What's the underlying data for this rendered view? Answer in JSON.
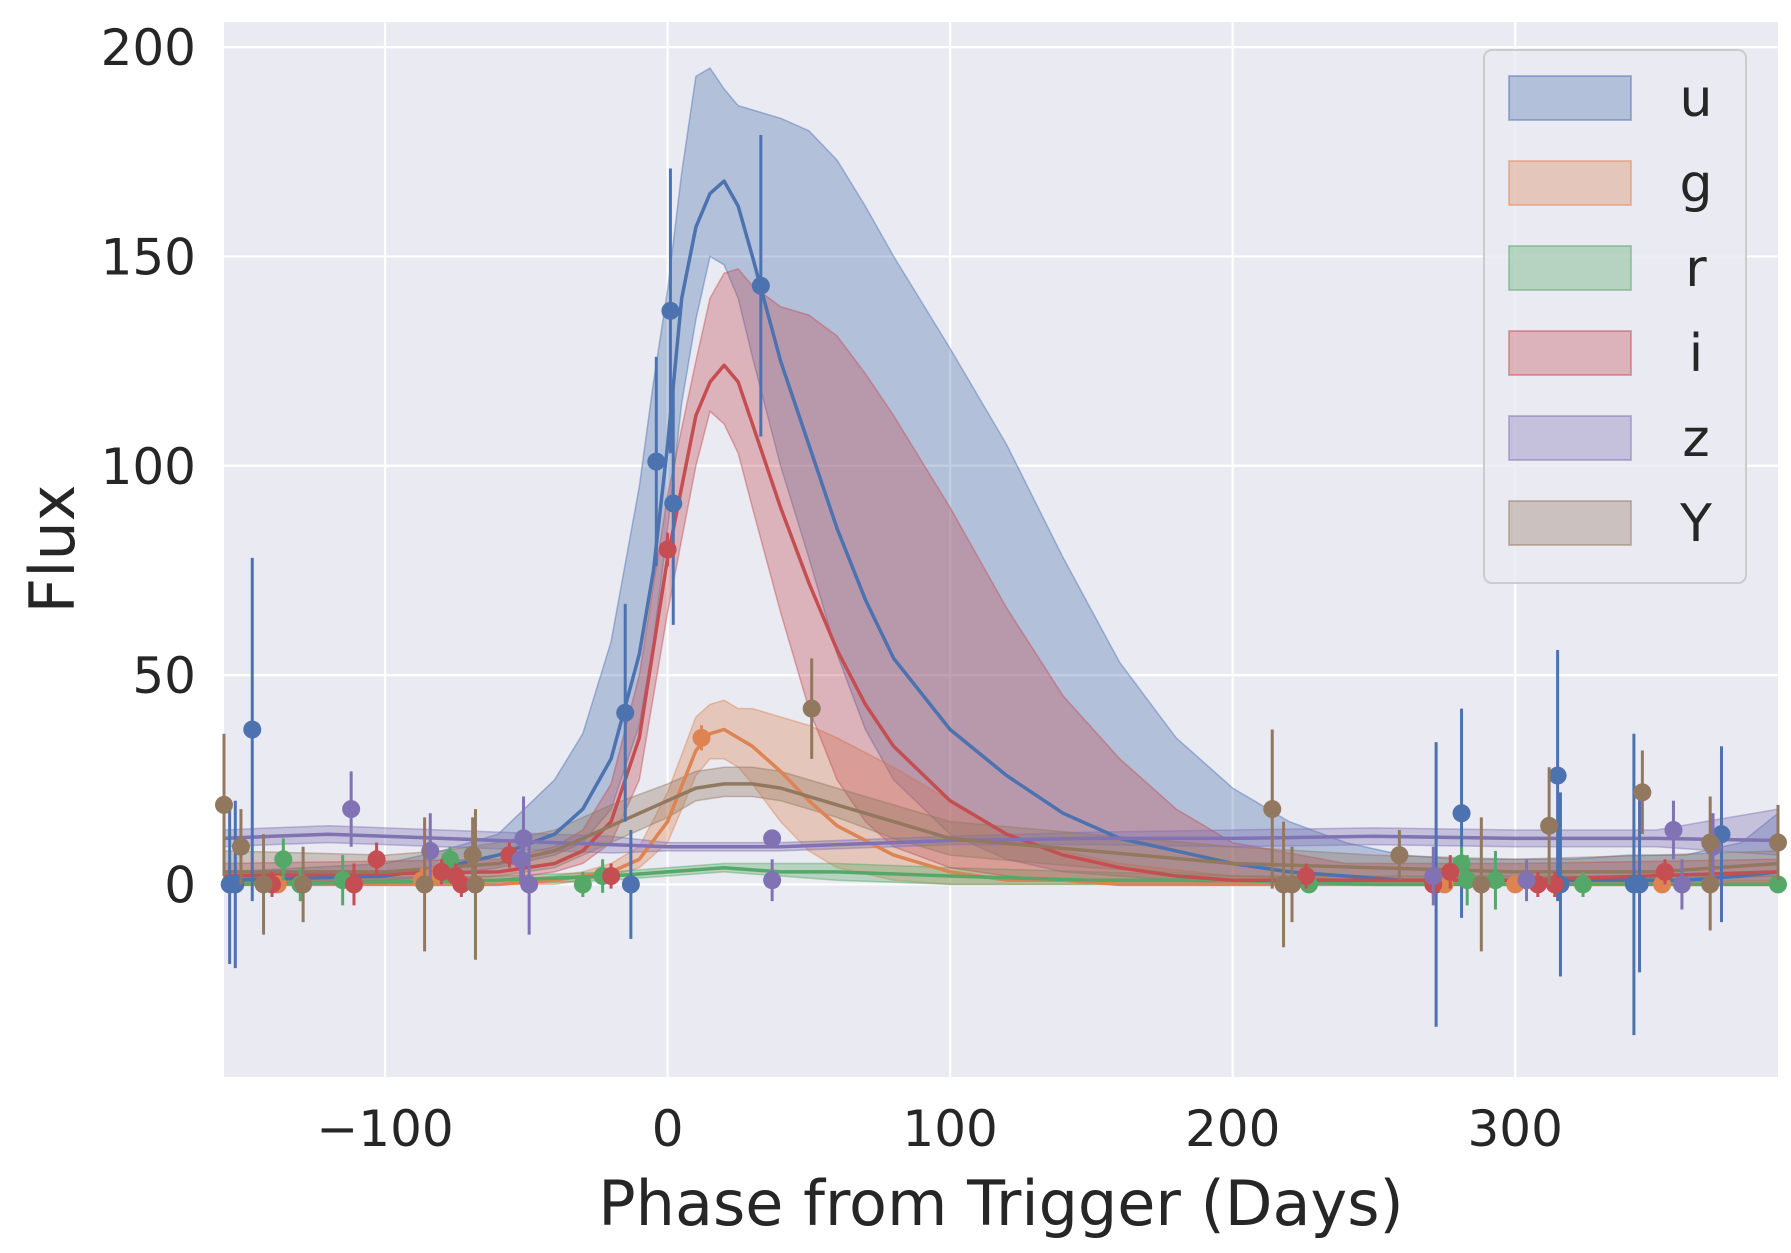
{
  "chart_data": {
    "type": "line",
    "xlabel": "Phase from Trigger (Days)",
    "ylabel": "Flux",
    "xlim": [
      -157,
      393
    ],
    "ylim": [
      -46,
      206
    ],
    "xticks": [
      -100,
      0,
      100,
      200,
      300
    ],
    "xtick_labels": [
      "−100",
      "0",
      "100",
      "200",
      "300"
    ],
    "yticks": [
      0,
      50,
      100,
      150,
      200
    ],
    "ytick_labels": [
      "0",
      "50",
      "100",
      "150",
      "200"
    ],
    "grid": true,
    "legend_position": "top-right",
    "series": [
      {
        "name": "u",
        "color": "#4c72b0",
        "model": {
          "x": [
            -157,
            -100,
            -80,
            -60,
            -40,
            -30,
            -20,
            -10,
            -5,
            0,
            5,
            10,
            15,
            20,
            25,
            30,
            40,
            50,
            60,
            70,
            80,
            100,
            120,
            140,
            160,
            180,
            200,
            220,
            240,
            260,
            280,
            300,
            320,
            340,
            360,
            380,
            393
          ],
          "y": [
            1,
            2,
            4,
            7,
            12,
            18,
            30,
            55,
            75,
            105,
            140,
            157,
            165,
            168,
            162,
            150,
            125,
            105,
            85,
            68,
            54,
            37,
            26,
            17,
            11,
            8,
            5,
            3,
            2,
            1,
            1,
            1,
            1,
            1,
            1,
            2,
            3
          ],
          "upper": [
            3,
            5,
            8,
            12,
            25,
            36,
            58,
            95,
            120,
            142,
            170,
            193,
            195,
            190,
            186,
            185,
            183,
            180,
            173,
            162,
            150,
            128,
            105,
            78,
            53,
            35,
            23,
            15,
            10,
            7,
            6,
            6,
            6,
            7,
            7,
            10,
            17
          ],
          "lower": [
            0,
            1,
            2,
            4,
            7,
            10,
            18,
            38,
            58,
            85,
            115,
            135,
            150,
            148,
            140,
            126,
            100,
            78,
            55,
            37,
            25,
            12,
            6,
            3,
            2,
            1,
            0,
            0,
            0,
            0,
            0,
            0,
            0,
            0,
            0,
            0,
            0
          ]
        },
        "points": [
          {
            "x": -155,
            "y": 0,
            "err": 19
          },
          {
            "x": -153,
            "y": 0,
            "err": 20
          },
          {
            "x": -147,
            "y": 37,
            "err": 41
          },
          {
            "x": -15,
            "y": 41,
            "err": 26
          },
          {
            "x": -13,
            "y": 0,
            "err": 13
          },
          {
            "x": -4,
            "y": 101,
            "err": 25
          },
          {
            "x": 1,
            "y": 137,
            "err": 34
          },
          {
            "x": 2,
            "y": 91,
            "err": 29
          },
          {
            "x": 33,
            "y": 143,
            "err": 36
          },
          {
            "x": 272,
            "y": 0,
            "err": 34
          },
          {
            "x": 281,
            "y": 17,
            "err": 25
          },
          {
            "x": 315,
            "y": 26,
            "err": 30
          },
          {
            "x": 316,
            "y": 0,
            "err": 22
          },
          {
            "x": 342,
            "y": 0,
            "err": 36
          },
          {
            "x": 344,
            "y": 0,
            "err": 21
          },
          {
            "x": 373,
            "y": 12,
            "err": 21
          }
        ]
      },
      {
        "name": "g",
        "color": "#dd8452",
        "model": {
          "x": [
            -157,
            -60,
            -40,
            -30,
            -20,
            -10,
            0,
            10,
            15,
            20,
            25,
            30,
            40,
            50,
            60,
            80,
            100,
            120,
            140,
            160,
            200,
            240,
            300,
            393
          ],
          "y": [
            0,
            0,
            1,
            2,
            3,
            6,
            15,
            32,
            36,
            37,
            35,
            33,
            27,
            20,
            14,
            7,
            3,
            1,
            1,
            0,
            0,
            0,
            0,
            0
          ],
          "upper": [
            1,
            1,
            2,
            3,
            5,
            9,
            22,
            40,
            43,
            44,
            42,
            42,
            40,
            38,
            35,
            28,
            20,
            12,
            8,
            5,
            2,
            1,
            1,
            1
          ],
          "lower": [
            0,
            0,
            0,
            1,
            2,
            4,
            10,
            26,
            30,
            30,
            28,
            24,
            15,
            8,
            4,
            1,
            0,
            0,
            0,
            0,
            0,
            0,
            0,
            0
          ]
        },
        "points": [
          {
            "x": -138,
            "y": 0,
            "err": 0
          },
          {
            "x": -87,
            "y": 1,
            "err": 3
          },
          {
            "x": -83,
            "y": 2,
            "err": 2
          },
          {
            "x": 12,
            "y": 35,
            "err": 3
          },
          {
            "x": 275,
            "y": 0,
            "err": 0
          },
          {
            "x": 300,
            "y": 0,
            "err": 0
          },
          {
            "x": 352,
            "y": 0,
            "err": 0
          }
        ]
      },
      {
        "name": "r",
        "color": "#55a868",
        "model": {
          "x": [
            -157,
            -60,
            -20,
            0,
            20,
            40,
            60,
            100,
            150,
            200,
            250,
            300,
            393
          ],
          "y": [
            0,
            1,
            2,
            3,
            4,
            3,
            3,
            2,
            1,
            1,
            0,
            0,
            0
          ],
          "upper": [
            1,
            2,
            3,
            4,
            5,
            5,
            5,
            4,
            3,
            2,
            2,
            2,
            2
          ],
          "lower": [
            0,
            0,
            1,
            2,
            3,
            2,
            1,
            0,
            0,
            0,
            0,
            0,
            0
          ]
        },
        "points": [
          {
            "x": -136,
            "y": 6,
            "err": 5
          },
          {
            "x": -130,
            "y": 0,
            "err": 4
          },
          {
            "x": -115,
            "y": 1,
            "err": 6
          },
          {
            "x": -77,
            "y": 6,
            "err": 3
          },
          {
            "x": -30,
            "y": 0,
            "err": 3
          },
          {
            "x": -23,
            "y": 2,
            "err": 4
          },
          {
            "x": 227,
            "y": 0,
            "err": 1
          },
          {
            "x": 281,
            "y": 5,
            "err": 4
          },
          {
            "x": 283,
            "y": 1,
            "err": 6
          },
          {
            "x": 293,
            "y": 1,
            "err": 7
          },
          {
            "x": 324,
            "y": 0,
            "err": 3
          },
          {
            "x": 393,
            "y": 0,
            "err": 2
          }
        ]
      },
      {
        "name": "i",
        "color": "#c44e52",
        "model": {
          "x": [
            -157,
            -60,
            -40,
            -30,
            -20,
            -10,
            0,
            10,
            15,
            20,
            25,
            30,
            40,
            50,
            60,
            70,
            80,
            100,
            120,
            140,
            160,
            180,
            200,
            240,
            300,
            393
          ],
          "y": [
            2,
            3,
            5,
            8,
            15,
            35,
            78,
            112,
            120,
            124,
            120,
            110,
            90,
            72,
            56,
            43,
            33,
            20,
            12,
            7,
            4,
            2,
            1,
            1,
            1,
            3
          ],
          "upper": [
            5,
            6,
            9,
            13,
            24,
            50,
            93,
            125,
            140,
            146,
            147,
            143,
            138,
            136,
            131,
            122,
            112,
            90,
            66,
            45,
            30,
            18,
            10,
            5,
            5,
            6
          ],
          "lower": [
            0,
            1,
            3,
            5,
            10,
            25,
            65,
            100,
            113,
            110,
            103,
            90,
            65,
            42,
            25,
            15,
            9,
            4,
            2,
            1,
            0,
            0,
            0,
            0,
            0,
            0
          ]
        },
        "points": [
          {
            "x": -140,
            "y": 0,
            "err": 3
          },
          {
            "x": -111,
            "y": 0,
            "err": 5
          },
          {
            "x": -103,
            "y": 6,
            "err": 4
          },
          {
            "x": -80,
            "y": 3,
            "err": 3
          },
          {
            "x": -75,
            "y": 2,
            "err": 3
          },
          {
            "x": -73,
            "y": 0,
            "err": 3
          },
          {
            "x": -56,
            "y": 7,
            "err": 3
          },
          {
            "x": -20,
            "y": 2,
            "err": 3
          },
          {
            "x": 0,
            "y": 80,
            "err": 4
          },
          {
            "x": 226,
            "y": 2,
            "err": 3
          },
          {
            "x": 271,
            "y": 0,
            "err": 3
          },
          {
            "x": 277,
            "y": 3,
            "err": 4
          },
          {
            "x": 308,
            "y": 0,
            "err": 3
          },
          {
            "x": 314,
            "y": 0,
            "err": 3
          },
          {
            "x": 353,
            "y": 3,
            "err": 3
          }
        ]
      },
      {
        "name": "z",
        "color": "#8172b3",
        "model": {
          "x": [
            -157,
            -140,
            -120,
            -100,
            -80,
            -60,
            -40,
            -20,
            0,
            20,
            40,
            60,
            80,
            100,
            150,
            200,
            250,
            300,
            350,
            393
          ],
          "y": [
            11,
            11.5,
            12,
            11.5,
            11,
            10.5,
            10,
            9.5,
            9,
            9,
            9,
            9.5,
            10,
            10.5,
            11,
            11,
            11.5,
            11,
            11,
            10.5
          ],
          "upper": [
            13,
            13.5,
            14,
            13.5,
            13,
            12.5,
            12,
            11.5,
            10,
            10,
            10,
            10.5,
            11,
            11.5,
            12.5,
            13,
            13.5,
            13,
            13,
            18
          ],
          "lower": [
            9,
            9.5,
            10,
            9.5,
            9,
            8.5,
            8,
            7.5,
            8,
            8,
            8,
            8.5,
            9,
            9.5,
            9.5,
            9,
            9.5,
            9,
            9,
            7
          ]
        },
        "points": [
          {
            "x": -112,
            "y": 18,
            "err": 9
          },
          {
            "x": -84,
            "y": 8,
            "err": 9
          },
          {
            "x": -52,
            "y": 6,
            "err": 6
          },
          {
            "x": -51,
            "y": 11,
            "err": 10
          },
          {
            "x": -49,
            "y": 0,
            "err": 12
          },
          {
            "x": 37,
            "y": 1,
            "err": 5
          },
          {
            "x": 37,
            "y": 11,
            "err": 2
          },
          {
            "x": 271,
            "y": 2,
            "err": 7
          },
          {
            "x": 304,
            "y": 1,
            "err": 5
          },
          {
            "x": 356,
            "y": 13,
            "err": 7
          },
          {
            "x": 359,
            "y": 0,
            "err": 6
          },
          {
            "x": 370,
            "y": 9,
            "err": 8
          }
        ]
      },
      {
        "name": "Y",
        "color": "#937860",
        "model": {
          "x": [
            -157,
            -100,
            -80,
            -60,
            -40,
            -20,
            0,
            10,
            20,
            30,
            40,
            60,
            80,
            100,
            150,
            200,
            250,
            300,
            350,
            393
          ],
          "y": [
            3,
            3,
            4,
            5,
            8,
            14,
            20,
            23,
            24,
            24,
            23,
            19,
            15,
            11,
            8,
            5,
            4,
            3,
            3,
            5
          ],
          "upper": [
            8,
            7,
            8,
            10,
            13,
            19,
            24,
            27,
            28,
            28,
            27,
            23,
            19,
            15,
            12,
            9,
            7,
            6,
            7,
            8
          ],
          "lower": [
            0,
            0,
            1,
            2,
            4,
            10,
            16,
            20,
            21,
            21,
            20,
            16,
            11,
            7,
            4,
            2,
            1,
            1,
            1,
            2
          ]
        },
        "points": [
          {
            "x": -157,
            "y": 19,
            "err": 17
          },
          {
            "x": -151,
            "y": 9,
            "err": 9
          },
          {
            "x": -143,
            "y": 0,
            "err": 12
          },
          {
            "x": -129,
            "y": 0,
            "err": 9
          },
          {
            "x": -86,
            "y": 0,
            "err": 16
          },
          {
            "x": -69,
            "y": 7,
            "err": 9
          },
          {
            "x": -68,
            "y": 0,
            "err": 18
          },
          {
            "x": 51,
            "y": 42,
            "err": 12
          },
          {
            "x": 214,
            "y": 18,
            "err": 19
          },
          {
            "x": 218,
            "y": 0,
            "err": 15
          },
          {
            "x": 221,
            "y": 0,
            "err": 9
          },
          {
            "x": 259,
            "y": 7,
            "err": 6
          },
          {
            "x": 288,
            "y": 0,
            "err": 16
          },
          {
            "x": 312,
            "y": 14,
            "err": 14
          },
          {
            "x": 345,
            "y": 22,
            "err": 10
          },
          {
            "x": 369,
            "y": 10,
            "err": 11
          },
          {
            "x": 369,
            "y": 0,
            "err": 11
          },
          {
            "x": 393,
            "y": 10,
            "err": 9
          }
        ]
      }
    ]
  }
}
